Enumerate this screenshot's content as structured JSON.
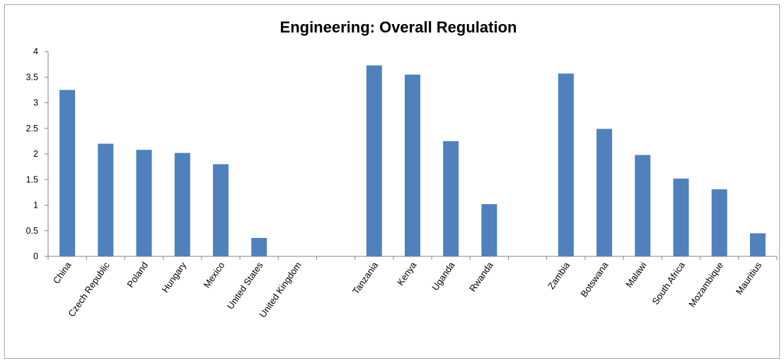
{
  "chart_data": {
    "type": "bar",
    "title": "Engineering: Overall Regulation",
    "xlabel": "",
    "ylabel": "",
    "ylim": [
      0,
      4
    ],
    "yticks": [
      "0",
      "0.5",
      "1",
      "1.5",
      "2",
      "2.5",
      "3",
      "3.5",
      "4"
    ],
    "grid": false,
    "legend": "none",
    "bar_color": "#4f81bd",
    "categories": [
      "China",
      "Czech Republic",
      "Poland",
      "Hungary",
      "Mexico",
      "United States",
      "United Kingdom",
      "",
      "Tanzania",
      "Kenya",
      "Uganda",
      "Rwanda",
      "",
      "Zambia",
      "Botswana",
      "Malawi",
      "South Africa",
      "Mozambique",
      "Mauritius"
    ],
    "values": [
      3.25,
      2.2,
      2.08,
      2.02,
      1.8,
      0.36,
      0,
      null,
      3.73,
      3.55,
      2.25,
      1.02,
      null,
      3.57,
      2.49,
      1.98,
      1.52,
      1.31,
      0.45
    ]
  }
}
